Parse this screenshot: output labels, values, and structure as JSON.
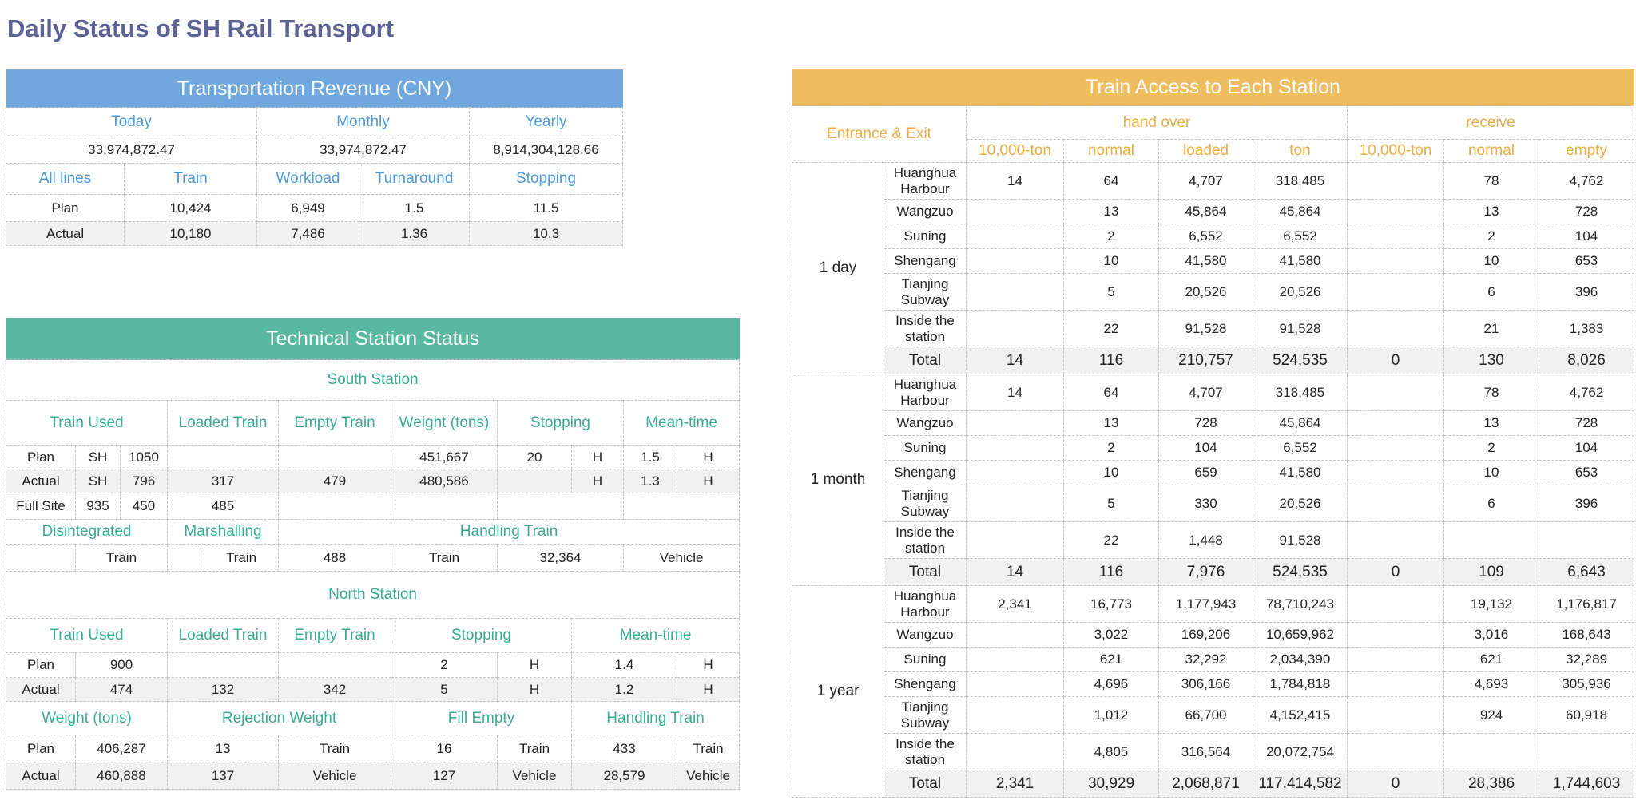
{
  "title": "Daily Status of SH Rail Transport",
  "revenue": {
    "title": "Transportation Revenue (CNY)",
    "header": [
      "Today",
      "Monthly",
      "Yearly"
    ],
    "amounts": [
      "33,974,872.47",
      "33,974,872.47",
      "8,914,304,128.66"
    ],
    "columns": [
      "All lines",
      "Train",
      "Workload",
      "Turnaround",
      "Stopping"
    ],
    "rows": [
      [
        "Plan",
        "10,424",
        "6,949",
        "1.5",
        "11.5"
      ],
      [
        "Actual",
        "10,180",
        "7,486",
        "1.36",
        "10.3"
      ]
    ]
  },
  "technical": {
    "title": "Technical Station Status",
    "south": {
      "title": "South Station",
      "header": [
        "Train Used",
        "Loaded Train",
        "Empty Train",
        "Weight (tons)",
        "Stopping",
        "Mean-time"
      ],
      "rows": [
        [
          "Plan",
          "SH",
          "1050",
          "451,667",
          "20",
          "H",
          "1.5",
          "H"
        ],
        [
          "Actual",
          "SH",
          "796",
          "317",
          "479",
          "480,586",
          "H",
          "1.3",
          "H"
        ],
        [
          "Full Site",
          "935",
          "450",
          "485"
        ]
      ],
      "subheader": [
        "Disintegrated",
        "Marshalling",
        "Handling Train"
      ],
      "handling": [
        "Train",
        "Train",
        "488",
        "Train",
        "32,364",
        "Vehicle"
      ]
    },
    "north": {
      "title": "North Station",
      "header": [
        "Train Used",
        "Loaded Train",
        "Empty Train",
        "Stopping",
        "Mean-time"
      ],
      "rows": [
        [
          "Plan",
          "900",
          "2",
          "H",
          "1.4",
          "H"
        ],
        [
          "Actual",
          "474",
          "132",
          "342",
          "5",
          "H",
          "1.2",
          "H"
        ]
      ],
      "subheader": [
        "Weight (tons)",
        "Rejection Weight",
        "Fill Empty",
        "Handling Train"
      ],
      "subrows": [
        [
          "Plan",
          "406,287",
          "13",
          "Train",
          "16",
          "Train",
          "433",
          "Train"
        ],
        [
          "Actual",
          "460,888",
          "137",
          "Vehicle",
          "127",
          "Vehicle",
          "28,579",
          "Vehicle"
        ]
      ]
    }
  },
  "access": {
    "title": "Train Access to Each Station",
    "corner": "Entrance & Exit",
    "groups": [
      "hand over",
      "receive"
    ],
    "columns": [
      "10,000-ton",
      "normal",
      "loaded",
      "ton",
      "10,000-ton",
      "normal",
      "empty"
    ],
    "periods": [
      {
        "label": "1 day",
        "rows": [
          {
            "station": "Huanghua Harbour",
            "values": [
              "14",
              "64",
              "4,707",
              "318,485",
              null,
              "78",
              "4,762"
            ]
          },
          {
            "station": "Wangzuo",
            "values": [
              null,
              "13",
              "45,864",
              "45,864",
              null,
              "13",
              "728"
            ]
          },
          {
            "station": "Suning",
            "values": [
              null,
              "2",
              "6,552",
              "6,552",
              null,
              "2",
              "104"
            ]
          },
          {
            "station": "Shengang",
            "values": [
              null,
              "10",
              "41,580",
              "41,580",
              null,
              "10",
              "653"
            ]
          },
          {
            "station": "Tianjing Subway",
            "values": [
              null,
              "5",
              "20,526",
              "20,526",
              null,
              "6",
              "396"
            ]
          },
          {
            "station": "Inside the station",
            "values": [
              null,
              "22",
              "91,528",
              "91,528",
              null,
              "21",
              "1,383"
            ]
          }
        ],
        "total": {
          "label": "Total",
          "values": [
            "14",
            "116",
            "210,757",
            "524,535",
            "0",
            "130",
            "8,026"
          ]
        }
      },
      {
        "label": "1 month",
        "rows": [
          {
            "station": "Huanghua Harbour",
            "values": [
              "14",
              "64",
              "4,707",
              "318,485",
              null,
              "78",
              "4,762"
            ]
          },
          {
            "station": "Wangzuo",
            "values": [
              null,
              "13",
              "728",
              "45,864",
              null,
              "13",
              "728"
            ]
          },
          {
            "station": "Suning",
            "values": [
              null,
              "2",
              "104",
              "6,552",
              null,
              "2",
              "104"
            ]
          },
          {
            "station": "Shengang",
            "values": [
              null,
              "10",
              "659",
              "41,580",
              null,
              "10",
              "653"
            ]
          },
          {
            "station": "Tianjing Subway",
            "values": [
              null,
              "5",
              "330",
              "20,526",
              null,
              "6",
              "396"
            ]
          },
          {
            "station": "Inside the station",
            "values": [
              null,
              "22",
              "1,448",
              "91,528",
              null,
              null,
              null
            ]
          }
        ],
        "total": {
          "label": "Total",
          "values": [
            "14",
            "116",
            "7,976",
            "524,535",
            "0",
            "109",
            "6,643"
          ]
        }
      },
      {
        "label": "1 year",
        "rows": [
          {
            "station": "Huanghua Harbour",
            "values": [
              "2,341",
              "16,773",
              "1,177,943",
              "78,710,243",
              null,
              "19,132",
              "1,176,817"
            ]
          },
          {
            "station": "Wangzuo",
            "values": [
              null,
              "3,022",
              "169,206",
              "10,659,962",
              null,
              "3,016",
              "168,643"
            ]
          },
          {
            "station": "Suning",
            "values": [
              null,
              "621",
              "32,292",
              "2,034,390",
              null,
              "621",
              "32,289"
            ]
          },
          {
            "station": "Shengang",
            "values": [
              null,
              "4,696",
              "306,166",
              "1,784,818",
              null,
              "4,693",
              "305,936"
            ]
          },
          {
            "station": "Tianjing Subway",
            "values": [
              null,
              "1,012",
              "66,700",
              "4,152,415",
              null,
              "924",
              "60,918"
            ]
          },
          {
            "station": "Inside the station",
            "values": [
              null,
              "4,805",
              "316,564",
              "20,072,754",
              null,
              null,
              null
            ]
          }
        ],
        "total": {
          "label": "Total",
          "values": [
            "2,341",
            "30,929",
            "2,068,871",
            "117,414,582",
            "0",
            "28,386",
            "1,744,603"
          ]
        }
      }
    ]
  }
}
